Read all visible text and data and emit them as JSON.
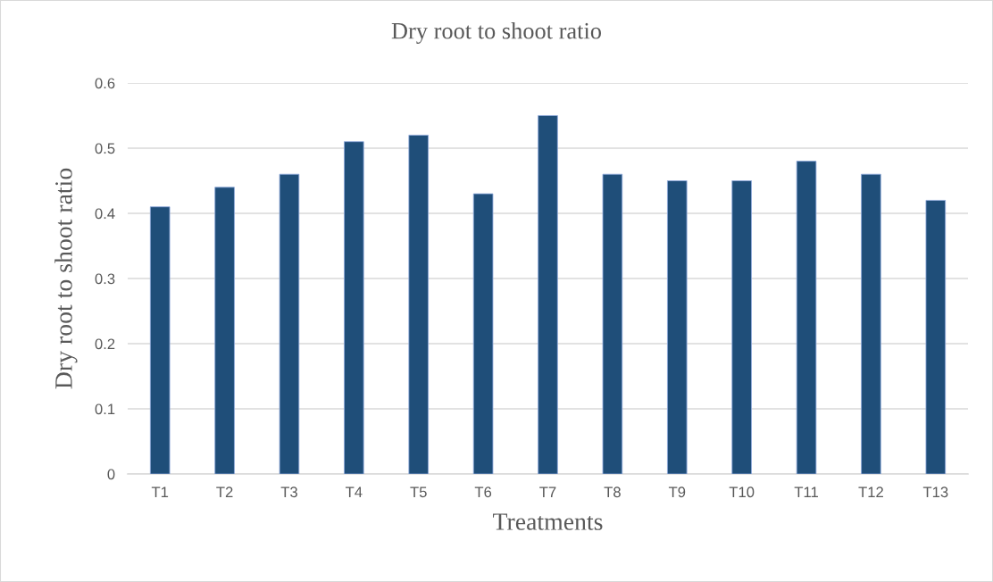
{
  "chart_data": {
    "type": "bar",
    "title": "Dry root to shoot ratio",
    "xlabel": "Treatments",
    "ylabel": "Dry root to shoot ratio",
    "categories": [
      "T1",
      "T2",
      "T3",
      "T4",
      "T5",
      "T6",
      "T7",
      "T8",
      "T9",
      "T10",
      "T11",
      "T12",
      "T13"
    ],
    "values": [
      0.41,
      0.44,
      0.46,
      0.51,
      0.52,
      0.43,
      0.55,
      0.46,
      0.45,
      0.45,
      0.48,
      0.46,
      0.42
    ],
    "color": "#1f4e79",
    "ylim": [
      0,
      0.6
    ],
    "yticks": [
      0,
      0.1,
      0.2,
      0.3,
      0.4,
      0.5,
      0.6
    ],
    "grid": "y"
  }
}
